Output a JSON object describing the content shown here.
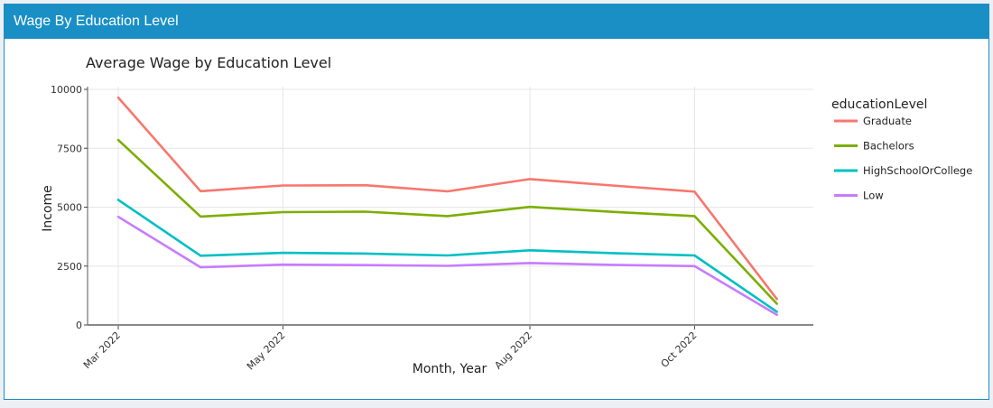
{
  "panel": {
    "title": "Wage By Education Level"
  },
  "chart_data": {
    "type": "line",
    "title": "Average Wage by Education Level",
    "xlabel": "Month, Year",
    "ylabel": "Income",
    "x": [
      "2022-03",
      "2022-04",
      "2022-05",
      "2022-06",
      "2022-07",
      "2022-08",
      "2022-09",
      "2022-10",
      "2022-11"
    ],
    "x_ticks": [
      {
        "x": "2022-03",
        "label": "Mar 2022"
      },
      {
        "x": "2022-05",
        "label": "May 2022"
      },
      {
        "x": "2022-08",
        "label": "Aug 2022"
      },
      {
        "x": "2022-10",
        "label": "Oct 2022"
      }
    ],
    "ylim": [
      0,
      10000
    ],
    "y_ticks": [
      0,
      2500,
      5000,
      7500,
      10000
    ],
    "grid": true,
    "legend": {
      "title": "educationLevel",
      "position": "right"
    },
    "series": [
      {
        "name": "Graduate",
        "color": "#f8766d",
        "values": [
          9650,
          5680,
          5920,
          5930,
          5670,
          6190,
          5920,
          5660,
          1100
        ]
      },
      {
        "name": "Bachelors",
        "color": "#7cae00",
        "values": [
          7850,
          4600,
          4790,
          4810,
          4620,
          5010,
          4800,
          4620,
          900
        ]
      },
      {
        "name": "HighSchoolOrCollege",
        "color": "#00bfc4",
        "values": [
          5310,
          2940,
          3060,
          3030,
          2950,
          3170,
          3050,
          2950,
          560
        ]
      },
      {
        "name": "Low",
        "color": "#c77cff",
        "values": [
          4590,
          2450,
          2560,
          2540,
          2510,
          2630,
          2550,
          2500,
          430
        ]
      }
    ]
  }
}
